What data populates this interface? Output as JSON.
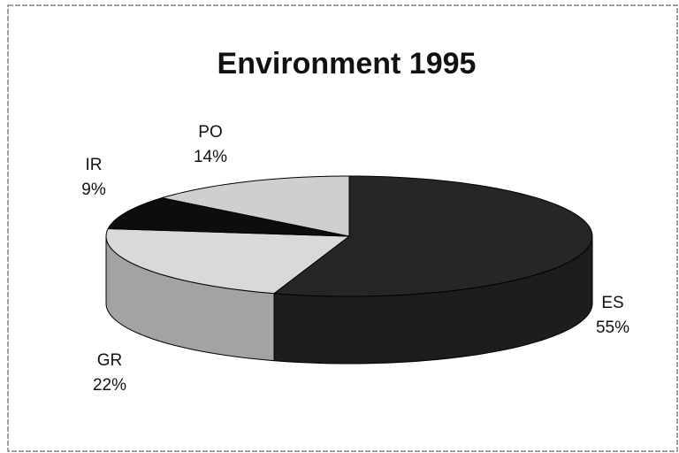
{
  "chart_data": {
    "type": "pie",
    "title": "Environment 1995",
    "categories": [
      "ES",
      "GR",
      "IR",
      "PO"
    ],
    "values": [
      55,
      22,
      9,
      14
    ],
    "value_labels": [
      "55%",
      "22%",
      "9%",
      "14%"
    ],
    "colors": [
      "#262626",
      "#d9d9d9",
      "#0d0d0d",
      "#cfcfcf"
    ]
  }
}
